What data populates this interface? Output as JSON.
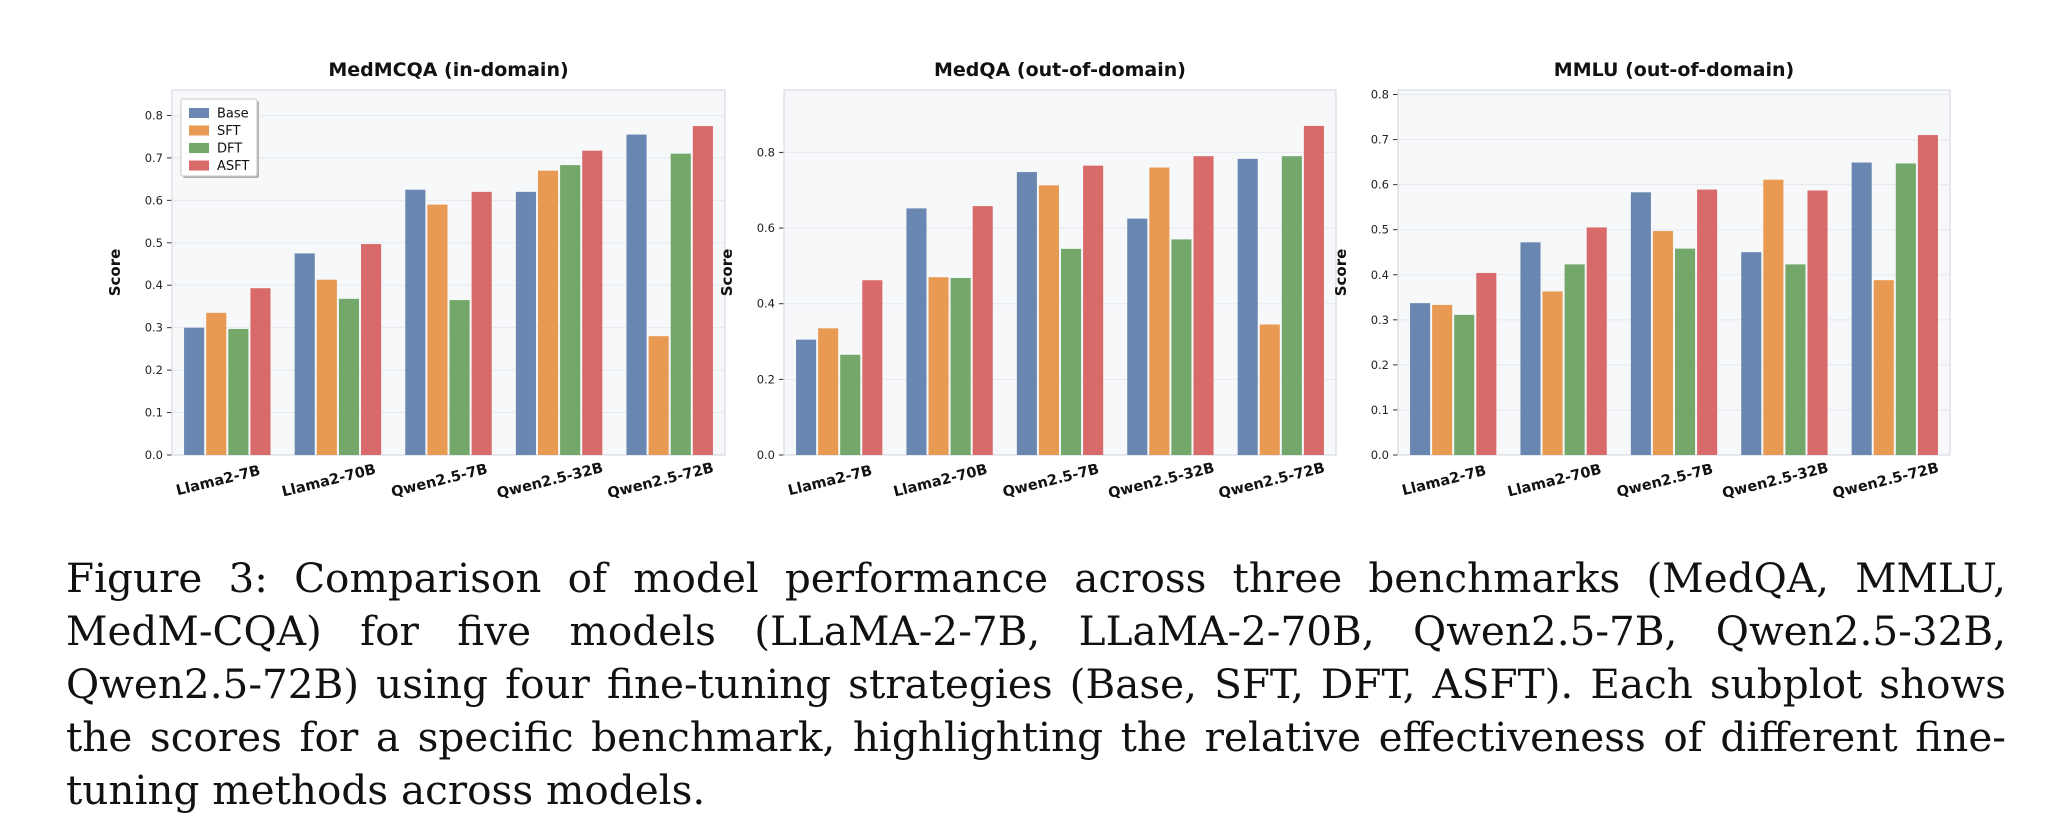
{
  "figure": {
    "caption": "Figure 3: Comparison of model performance across three benchmarks (MedQA, MMLU, MedM-CQA) for five models (LLaMA-2-7B, LLaMA-2-70B, Qwen2.5-7B, Qwen2.5-32B, Qwen2.5-72B) using four fine-tuning strategies (Base, SFT, DFT, ASFT). Each subplot shows the scores for a specific benchmark, highlighting the relative effectiveness of different fine-tuning methods across models."
  },
  "colors": {
    "Base": "#6a87b1",
    "SFT": "#e89a52",
    "DFT": "#74a86b",
    "ASFT": "#d96a6a",
    "plot_bg": "#f7f8fa",
    "grid": "#e6e9ee"
  },
  "chart_data": [
    {
      "type": "bar",
      "title": "MedMCQA (in-domain)",
      "xlabel": "",
      "ylabel": "Score",
      "categories": [
        "Llama2-7B",
        "Llama2-70B",
        "Qwen2.5-7B",
        "Qwen2.5-32B",
        "Qwen2.5-72B"
      ],
      "ylim": [
        0,
        0.86
      ],
      "yticks": [
        0.0,
        0.1,
        0.2,
        0.3,
        0.4,
        0.5,
        0.6,
        0.7,
        0.8
      ],
      "grid": true,
      "legend": "top-left",
      "series": [
        {
          "name": "Base",
          "values": [
            0.3,
            0.475,
            0.625,
            0.62,
            0.755
          ]
        },
        {
          "name": "SFT",
          "values": [
            0.335,
            0.413,
            0.59,
            0.67,
            0.28
          ]
        },
        {
          "name": "DFT",
          "values": [
            0.297,
            0.368,
            0.365,
            0.683,
            0.71
          ]
        },
        {
          "name": "ASFT",
          "values": [
            0.393,
            0.497,
            0.62,
            0.717,
            0.775
          ]
        }
      ]
    },
    {
      "type": "bar",
      "title": "MedQA (out-of-domain)",
      "xlabel": "",
      "ylabel": "Score",
      "categories": [
        "Llama2-7B",
        "Llama2-70B",
        "Qwen2.5-7B",
        "Qwen2.5-32B",
        "Qwen2.5-72B"
      ],
      "ylim": [
        0,
        0.965
      ],
      "yticks": [
        0.0,
        0.2,
        0.4,
        0.6,
        0.8
      ],
      "grid": true,
      "series": [
        {
          "name": "Base",
          "values": [
            0.305,
            0.652,
            0.748,
            0.625,
            0.783
          ]
        },
        {
          "name": "SFT",
          "values": [
            0.335,
            0.47,
            0.713,
            0.76,
            0.345
          ]
        },
        {
          "name": "DFT",
          "values": [
            0.265,
            0.468,
            0.545,
            0.57,
            0.79
          ]
        },
        {
          "name": "ASFT",
          "values": [
            0.462,
            0.658,
            0.765,
            0.79,
            0.87
          ]
        }
      ]
    },
    {
      "type": "bar",
      "title": "MMLU (out-of-domain)",
      "xlabel": "",
      "ylabel": "Score",
      "categories": [
        "Llama2-7B",
        "Llama2-70B",
        "Qwen2.5-7B",
        "Qwen2.5-32B",
        "Qwen2.5-72B"
      ],
      "ylim": [
        0,
        0.81
      ],
      "yticks": [
        0.0,
        0.1,
        0.2,
        0.3,
        0.4,
        0.5,
        0.6,
        0.7,
        0.8
      ],
      "grid": true,
      "series": [
        {
          "name": "Base",
          "values": [
            0.337,
            0.472,
            0.583,
            0.45,
            0.649
          ]
        },
        {
          "name": "SFT",
          "values": [
            0.333,
            0.363,
            0.497,
            0.611,
            0.388
          ]
        },
        {
          "name": "DFT",
          "values": [
            0.311,
            0.423,
            0.458,
            0.423,
            0.647
          ]
        },
        {
          "name": "ASFT",
          "values": [
            0.404,
            0.505,
            0.589,
            0.587,
            0.71
          ]
        }
      ]
    }
  ]
}
